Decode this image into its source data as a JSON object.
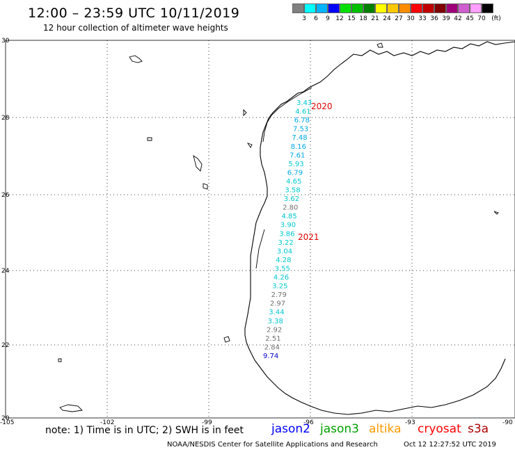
{
  "header": {
    "title": "12:00 – 23:59 UTC 10/11/2019",
    "subtitle": "12 hour collection of altimeter wave heights"
  },
  "legend": {
    "colors": [
      "#808080",
      "#00ffff",
      "#00b4ff",
      "#0000ff",
      "#00e000",
      "#00c000",
      "#008000",
      "#ffff00",
      "#ffc800",
      "#ff8c00",
      "#ff0000",
      "#c00000",
      "#800000",
      "#a0007a",
      "#d060d0",
      "#ffa0ff",
      "#000000"
    ],
    "labels": [
      "3",
      "6",
      "9",
      "12",
      "15",
      "18",
      "21",
      "24",
      "27",
      "30",
      "33",
      "36",
      "39",
      "42",
      "45",
      "70",
      "(ft)"
    ]
  },
  "axes": {
    "lat_labels": [
      "30",
      "28",
      "26",
      "24",
      "22",
      "20"
    ],
    "lon_labels": [
      "-105",
      "-102",
      "-99",
      "-96",
      "-93",
      "-90"
    ]
  },
  "track": {
    "year_labels": [
      "2020",
      "2021"
    ],
    "values": [
      {
        "v": "3.43",
        "c": "#00c8d0"
      },
      {
        "v": "4.61",
        "c": "#00c8d0"
      },
      {
        "v": "6.78",
        "c": "#00a8e8"
      },
      {
        "v": "7.53",
        "c": "#00a8e8"
      },
      {
        "v": "7.48",
        "c": "#00a8e8"
      },
      {
        "v": "8.16",
        "c": "#00a8e8"
      },
      {
        "v": "7.61",
        "c": "#00a8e8"
      },
      {
        "v": "5.93",
        "c": "#00c8d0"
      },
      {
        "v": "6.79",
        "c": "#00a8e8"
      },
      {
        "v": "4.65",
        "c": "#00c8d0"
      },
      {
        "v": "3.58",
        "c": "#00c8d0"
      },
      {
        "v": "3.62",
        "c": "#00c8d0"
      },
      {
        "v": "2.80",
        "c": "#707070"
      },
      {
        "v": "4.85",
        "c": "#00c8d0"
      },
      {
        "v": "3.90",
        "c": "#00c8d0"
      },
      {
        "v": "3.86",
        "c": "#00c8d0"
      },
      {
        "v": "3.22",
        "c": "#00c8d0"
      },
      {
        "v": "3.04",
        "c": "#00c8d0"
      },
      {
        "v": "4.28",
        "c": "#00c8d0"
      },
      {
        "v": "3.55",
        "c": "#00c8d0"
      },
      {
        "v": "4.26",
        "c": "#00c8d0"
      },
      {
        "v": "3.25",
        "c": "#00c8d0"
      },
      {
        "v": "2.79",
        "c": "#707070"
      },
      {
        "v": "2.97",
        "c": "#707070"
      },
      {
        "v": "3.44",
        "c": "#00c8d0"
      },
      {
        "v": "3.38",
        "c": "#00c8d0"
      },
      {
        "v": "2.92",
        "c": "#707070"
      },
      {
        "v": "2.51",
        "c": "#707070"
      },
      {
        "v": "2.84",
        "c": "#707070"
      },
      {
        "v": "9.74",
        "c": "#0000cc"
      }
    ]
  },
  "footer": {
    "note": "note: 1) Time is in UTC; 2) SWH is in feet",
    "satellites": [
      {
        "name": "jason2",
        "color": "#0000ff"
      },
      {
        "name": "jason3",
        "color": "#00a000"
      },
      {
        "name": "altika",
        "color": "#ff9900"
      },
      {
        "name": "cryosat",
        "color": "#ff0000"
      },
      {
        "name": "s3a",
        "color": "#aa0000"
      }
    ],
    "credit": "NOAA/NESDIS Center for Satellite Applications and Research",
    "timestamp": "Oct 12 12:27:52 UTC 2019"
  }
}
